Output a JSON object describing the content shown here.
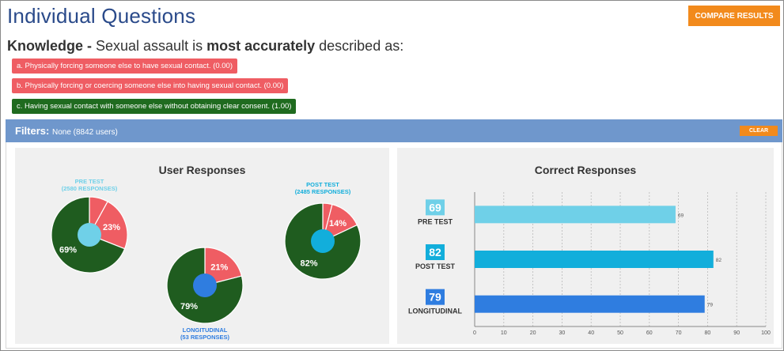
{
  "header": {
    "title": "Individual Questions",
    "compare_label": "COMPARE RESULTS"
  },
  "question": {
    "category": "Knowledge -",
    "text_before": " Sexual assault is ",
    "emphasis": "most accurately",
    "text_after": " described as:"
  },
  "answers": [
    {
      "label": "a. Physically forcing someone else to have sexual contact. (0.00)",
      "status": "wrong"
    },
    {
      "label": "b. Physically forcing or coercing someone else into having sexual contact. (0.00)",
      "status": "wrong"
    },
    {
      "label": "c. Having sexual contact with someone else without obtaining clear consent. (1.00)",
      "status": "correct"
    }
  ],
  "filters": {
    "label": "Filters:",
    "value": "None (8842 users)",
    "clear_label": "CLEAR"
  },
  "colors": {
    "incorrect": "#ef5d63",
    "correct": "#1f5c1f",
    "pre_test": "#6fd0e8",
    "post_test": "#12aedb",
    "longitudinal": "#2f7de0",
    "accent": "#f28a1c",
    "filter_bar": "#6f97cc",
    "title": "#2a4a8a"
  },
  "chart_data": [
    {
      "type": "pie",
      "title": "User Responses",
      "charts": [
        {
          "name": "PRE TEST",
          "subtitle": "(2580 RESPONSES)",
          "correct_pct": 69,
          "incorrect_pct": 23,
          "other_pct": 8,
          "correct_label": "69%",
          "incorrect_label": "23%"
        },
        {
          "name": "POST TEST",
          "subtitle": "(2485 RESPONSES)",
          "correct_pct": 82,
          "incorrect_pct": 14,
          "other_pct": 4,
          "correct_label": "82%",
          "incorrect_label": "14%"
        },
        {
          "name": "LONGITUDINAL",
          "subtitle": "(53 RESPONSES)",
          "correct_pct": 79,
          "incorrect_pct": 21,
          "other_pct": 0,
          "correct_label": "79%",
          "incorrect_label": "21%"
        }
      ]
    },
    {
      "type": "bar",
      "title": "Correct Responses",
      "categories": [
        "PRE TEST",
        "POST TEST",
        "LONGITUDINAL"
      ],
      "values": [
        69,
        82,
        79
      ],
      "xlim": [
        0,
        100
      ],
      "xticks": [
        0,
        10,
        20,
        30,
        40,
        50,
        60,
        70,
        80,
        90,
        100
      ],
      "grid": true
    }
  ]
}
